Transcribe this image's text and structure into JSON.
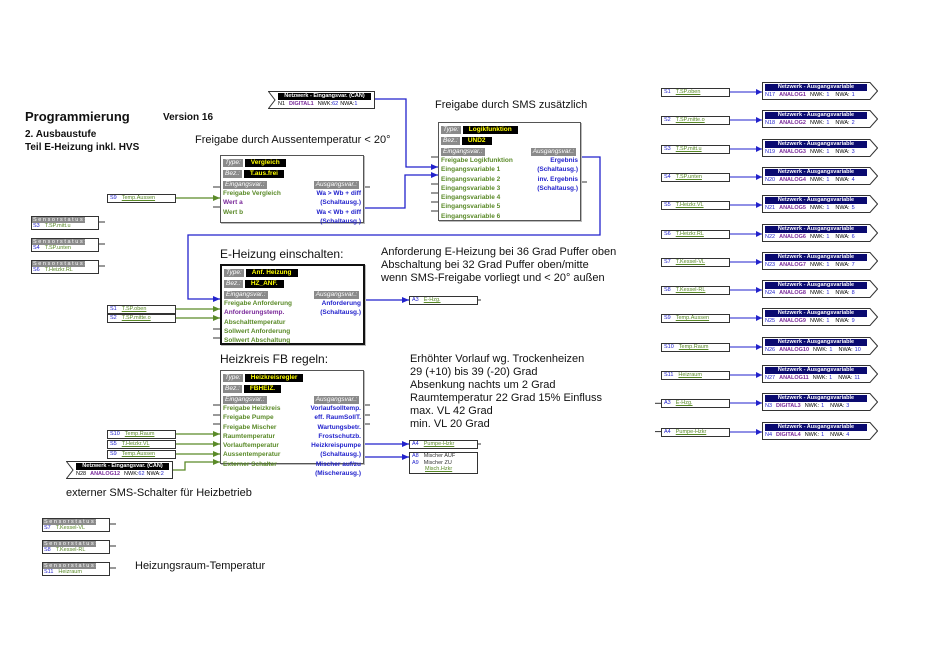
{
  "header": {
    "title": "Programmierung",
    "version": "Version 16",
    "sub1": "2. Ausbaustufe",
    "sub2": "Teil E-Heizung inkl. HVS"
  },
  "colors": {
    "input_green": "#5a8a28",
    "output_blue": "#2222cc",
    "value_purple": "#7a2a9a",
    "wire_blue": "#2222cc",
    "wire_green": "#5a8a28",
    "network_navy": "#0a0a70"
  },
  "labels": {
    "type": "Type:",
    "bez": "Bez.:",
    "eingang": "Eingangsvar.:",
    "ausgang": "Ausgangsvar.:",
    "sensorstatus": "Sensorstatus:",
    "net_in": "Netzwerk - Eingangsvar. (CAN)",
    "net_out": "Netzwerk - Ausgangsvariable"
  },
  "notes": {
    "freigabe_aussen": "Freigabe durch Aussentemperatur < 20°",
    "freigabe_sms": "Freigabe durch SMS zusätzlich",
    "eheizung": "E-Heizung einschalten:",
    "heizkreis": "Heizkreis FB regeln:",
    "anf": [
      "Anforderung E-Heizung bei 36 Grad Puffer oben",
      "Abschaltung bei 32 Grad Puffer oben/mitte",
      "wenn SMS-Freigabe vorliegt und < 20° außen"
    ],
    "vorlauf": [
      "Erhöhter Vorlauf wg. Trockenheizen",
      "29 (+10) bis 39 (-20) Grad",
      "Absenkung nachts um 2 Grad",
      "Raumtemperatur 22 Grad 15% Einfluss",
      "max. VL 42 Grad",
      "min. VL 20 Grad"
    ],
    "sms_schalter": "externer SMS-Schalter für Heizbetrieb",
    "heizraum": "Heizungsraum-Temperatur"
  },
  "net_inputs": [
    {
      "n": "N1",
      "var": "DIGITAL1",
      "nwk": "NWK:",
      "nwk_v": "62",
      "nwa": "NWA:",
      "nwa_v": "1"
    },
    {
      "n": "N28",
      "var": "ANALOG12",
      "nwk": "NWK:",
      "nwk_v": "62",
      "nwa": "NWA:",
      "nwa_v": "2"
    }
  ],
  "blocks": [
    {
      "type": "Vergleich",
      "bez": "T.aus.frei",
      "inputs": [
        [
          "Freigabe Vergleich",
          "g"
        ],
        [
          "Wert a",
          "p"
        ],
        [
          "Wert b",
          "g"
        ]
      ],
      "outputs": [
        "Wa > Wb + diff",
        "(Schaltausg.)",
        "Wa < Wb + diff",
        "(Schaltausg.)"
      ]
    },
    {
      "type": "Logikfunktion",
      "bez": "UND2",
      "inputs": [
        [
          "Freigabe Logikfunktion",
          "g"
        ],
        [
          "Eingangsvariable 1",
          "g"
        ],
        [
          "Eingangsvariable 2",
          "g"
        ],
        [
          "Eingangsvariable 3",
          "g"
        ],
        [
          "Eingangsvariable 4",
          "g"
        ],
        [
          "Eingangsvariable 5",
          "g"
        ],
        [
          "Eingangsvariable 6",
          "g"
        ]
      ],
      "outputs": [
        "Ergebnis",
        "(Schaltausg.)",
        "inv. Ergebnis",
        "(Schaltausg.)"
      ]
    },
    {
      "type": "Anf. Heizung",
      "bez": "HZ_ANF.",
      "inputs": [
        [
          "Freigabe Anforderung",
          "g"
        ],
        [
          "Anforderungstemp.",
          "p"
        ],
        [
          "Abschalttemperatur",
          "g"
        ],
        [
          "Sollwert Anforderung",
          "g"
        ],
        [
          "Sollwert Abschaltung",
          "g"
        ]
      ],
      "outputs": [
        "Anforderung",
        "(Schaltausg.)"
      ]
    },
    {
      "type": "Heizkreisregler",
      "bez": "FBHEIZ.",
      "inputs": [
        [
          "Freigabe Heizkreis",
          "g"
        ],
        [
          "Freigabe Pumpe",
          "g"
        ],
        [
          "Freigabe Mischer",
          "g"
        ],
        [
          "Raumtemperatur",
          "g"
        ],
        [
          "Vorlauftemperatur",
          "g"
        ],
        [
          "Aussentemperatur",
          "g"
        ],
        [
          "Externer Schalter",
          "g"
        ]
      ],
      "outputs": [
        "Vorlaufsolltemp.",
        "eff. RaumSollT.",
        "Wartungsbetr.",
        "Frostschutzb.",
        "Heizkreispumpe",
        "(Schaltausg.)",
        "Mischer auf/zu",
        "(Mischerausg.)"
      ]
    }
  ],
  "sensor_status": [
    {
      "id": "S3",
      "name": "T.SP.mitt.u"
    },
    {
      "id": "S4",
      "name": "T.SP.unten"
    },
    {
      "id": "S6",
      "name": "T.Heizkr.RL"
    },
    {
      "id": "S7",
      "name": "T.Kessel-VL"
    },
    {
      "id": "S8",
      "name": "T.Kessel-RL"
    },
    {
      "id": "S11",
      "name": "Heizraum"
    }
  ],
  "sources": [
    {
      "id": "S9",
      "name": "Temp.Aussen"
    },
    {
      "id": "S1",
      "name": "T.SP.oben"
    },
    {
      "id": "S2",
      "name": "T.SP.mitte.o"
    },
    {
      "id": "S10",
      "name": "Temp.Raum"
    },
    {
      "id": "S5",
      "name": "T.Heizkr.VL"
    },
    {
      "id": "S9",
      "name": "Temp.Aussen"
    },
    {
      "id": "A3",
      "name": "E-Hzg."
    },
    {
      "id": "A4",
      "name": "Pumpe-Hzkr"
    }
  ],
  "mixer_out": {
    "a": "A8",
    "a_label": "Mischer AUF",
    "b": "A9",
    "b_label": "Mischer ZU",
    "name": "Misch.Hzkr"
  },
  "outputs": [
    {
      "src": "S1",
      "src_name": "T.SP.oben",
      "n": "N17",
      "var": "ANALOG1",
      "nwk": "1",
      "nwa": "1"
    },
    {
      "src": "S2",
      "src_name": "T.SP.mitte.o",
      "n": "N18",
      "var": "ANALOG2",
      "nwk": "1",
      "nwa": "2"
    },
    {
      "src": "S3",
      "src_name": "T.SP.mitt.u",
      "n": "N19",
      "var": "ANALOG3",
      "nwk": "1",
      "nwa": "3"
    },
    {
      "src": "S4",
      "src_name": "T.SP.unten",
      "n": "N20",
      "var": "ANALOG4",
      "nwk": "1",
      "nwa": "4"
    },
    {
      "src": "S5",
      "src_name": "T.Heizkr.VL",
      "n": "N21",
      "var": "ANALOG5",
      "nwk": "1",
      "nwa": "5"
    },
    {
      "src": "S6",
      "src_name": "T.Heizkr.RL",
      "n": "N22",
      "var": "ANALOG6",
      "nwk": "1",
      "nwa": "6"
    },
    {
      "src": "S7",
      "src_name": "T.Kessel-VL",
      "n": "N23",
      "var": "ANALOG7",
      "nwk": "1",
      "nwa": "7"
    },
    {
      "src": "S8",
      "src_name": "T.Kessel-RL",
      "n": "N24",
      "var": "ANALOG8",
      "nwk": "1",
      "nwa": "8"
    },
    {
      "src": "S9",
      "src_name": "Temp.Aussen",
      "n": "N25",
      "var": "ANALOG9",
      "nwk": "1",
      "nwa": "9"
    },
    {
      "src": "S10",
      "src_name": "Temp.Raum",
      "n": "N26",
      "var": "ANALOG10",
      "nwk": "1",
      "nwa": "10"
    },
    {
      "src": "S11",
      "src_name": "Heizraum",
      "n": "N27",
      "var": "ANALOG11",
      "nwk": "1",
      "nwa": "11"
    },
    {
      "src": "A3",
      "src_name": "E-Hzg.",
      "n": "N3",
      "var": "DIGITAL3",
      "nwk": "1",
      "nwa": "3"
    },
    {
      "src": "A4",
      "src_name": "Pumpe-Hzkr",
      "n": "N4",
      "var": "DIGITAL4",
      "nwk": "1",
      "nwa": "4"
    }
  ],
  "nwk_label": "NWK:",
  "nwa_label": "NWA:"
}
